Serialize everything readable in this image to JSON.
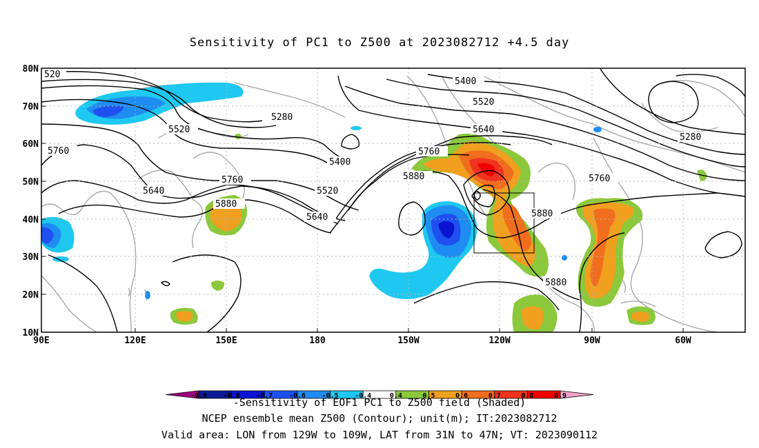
{
  "title": "Sensitivity of PC1 to Z500 at 2023082712 +4.5 day",
  "lat_ticks": [
    "80N",
    "70N",
    "60N",
    "50N",
    "40N",
    "30N",
    "20N",
    "10N"
  ],
  "lon_ticks": [
    "90E",
    "120E",
    "150E",
    "180",
    "150W",
    "120W",
    "90W",
    "60W"
  ],
  "contour_labels": [
    "520",
    "5280",
    "5520",
    "5760",
    "5640",
    "5400",
    "5520",
    "5640",
    "5760",
    "5880",
    "5880",
    "5640",
    "5400",
    "5520",
    "5640",
    "5760",
    "5880",
    "5760",
    "5880",
    "5880",
    "5280"
  ],
  "colorbar": {
    "ticks": [
      "-0.9",
      "-0.8",
      "-0.7",
      "-0.6",
      "-0.5",
      "-0.4",
      "0.4",
      "0.5",
      "0.6",
      "0.7",
      "0.8",
      "0.9"
    ],
    "colors": [
      "#a0007d",
      "#0a1a96",
      "#0a14d2",
      "#1e50f0",
      "#1e8cf0",
      "#1ec8f0",
      "#ffffff",
      "#8cc83c",
      "#f0a01e",
      "#f06e1e",
      "#f0321e",
      "#f00000",
      "#f0a0c8"
    ]
  },
  "footer": {
    "line1": "-Sensitivity of EOF1 PC1 to Z500 field (Shaded)",
    "line2": "NCEP ensemble mean Z500 (Contour); unit(m); IT:2023082712",
    "line3": "Valid area: LON from 129W to 109W, LAT from 31N to 47N; VT: 2023090112"
  },
  "valid_area": {
    "lon_from": "129W",
    "lon_to": "109W",
    "lat_from": "31N",
    "lat_to": "47N"
  }
}
